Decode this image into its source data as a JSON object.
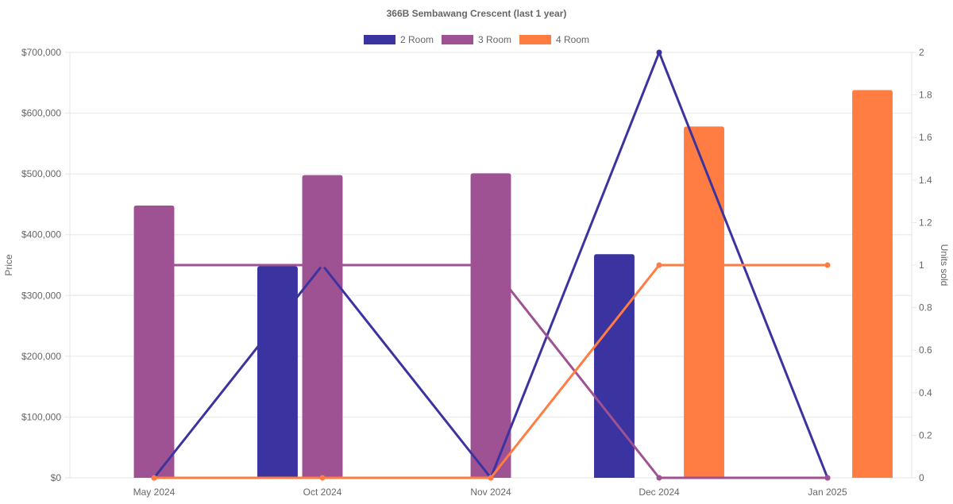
{
  "chart_data": {
    "type": "bar",
    "title": "366B Sembawang Crescent (last 1 year)",
    "categories": [
      "May 2024",
      "Oct 2024",
      "Nov 2024",
      "Dec 2024",
      "Jan 2025"
    ],
    "bar_series": [
      {
        "name": "2 Room",
        "color": "#3a33a0",
        "values": [
          null,
          348000,
          null,
          368000,
          null
        ]
      },
      {
        "name": "3 Room",
        "color": "#9e5193",
        "values": [
          448000,
          498000,
          501000,
          null,
          null
        ]
      },
      {
        "name": "4 Room",
        "color": "#ff7d42",
        "values": [
          null,
          null,
          null,
          578000,
          638000
        ]
      }
    ],
    "line_series": [
      {
        "name": "2 Room units sold",
        "color": "#3a33a0",
        "values": [
          0,
          1,
          0,
          2,
          0
        ]
      },
      {
        "name": "3 Room units sold",
        "color": "#9e5193",
        "values": [
          1,
          1,
          1,
          0,
          0
        ]
      },
      {
        "name": "4 Room units sold",
        "color": "#ff7d42",
        "values": [
          0,
          0,
          0,
          1,
          1
        ]
      }
    ],
    "legend": {
      "position": "top",
      "entries": [
        "2 Room",
        "3 Room",
        "4 Room"
      ]
    },
    "y_axis_left": {
      "label": "Price",
      "range": [
        0,
        700000
      ],
      "ticks": [
        "$0",
        "$100,000",
        "$200,000",
        "$300,000",
        "$400,000",
        "$500,000",
        "$600,000",
        "$700,000"
      ]
    },
    "y_axis_right": {
      "label": "Units sold",
      "range": [
        0,
        2
      ],
      "ticks": [
        "0",
        "0.2",
        "0.4",
        "0.6",
        "0.8",
        "1",
        "1.2",
        "1.4",
        "1.6",
        "1.8",
        "2"
      ]
    },
    "grid": true
  }
}
